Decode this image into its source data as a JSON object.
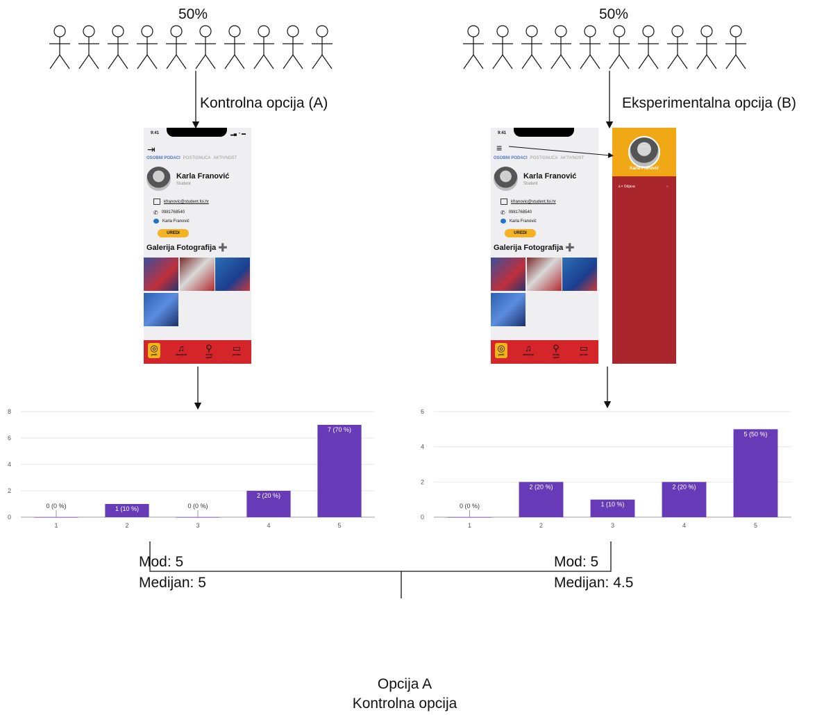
{
  "panels": [
    {
      "percent": "50%",
      "option_label": "Kontrolna opcija (A)",
      "phone": {
        "time": "9:41",
        "tabs": [
          "OSOBNI PODACI",
          "POSTIGNUĆA",
          "AKTIVNOST"
        ],
        "name": "Karla Franović",
        "role": "Student",
        "email": "kfranovic@student.foi.hr",
        "phone": "0981768540",
        "linkedin": "Karla Franović",
        "edit_label": "UREDI",
        "gallery_title": "Galerija Fotografija",
        "nav": [
          "profil",
          "obavijesti",
          "dodaj sport",
          "poruke"
        ]
      },
      "stats": {
        "mod": "Mod: 5",
        "medijan": "Medijan: 5"
      }
    },
    {
      "percent": "50%",
      "option_label": "Eksperimentalna opcija (B)",
      "phone": {
        "time": "9:41",
        "tabs": [
          "OSOBNI PODACI",
          "POSTIGNUĆA",
          "AKTIVNOST"
        ],
        "name": "Karla Franović",
        "role": "Student",
        "email": "kfranovic@student.foi.hr",
        "phone": "0981768540",
        "linkedin": "Karla Franović",
        "edit_label": "UREDI",
        "gallery_title": "Galerija Fotografija",
        "nav": [
          "profil",
          "obavijesti",
          "dodaj sport",
          "poruke"
        ],
        "drawer_name": "Karla Franović",
        "drawer_item": "Odjava"
      },
      "stats": {
        "mod": "Mod: 5",
        "medijan": "Medijan: 4.5"
      }
    }
  ],
  "chart_data": [
    {
      "type": "bar",
      "categories": [
        "1",
        "2",
        "3",
        "4",
        "5"
      ],
      "values": [
        0,
        1,
        0,
        2,
        7
      ],
      "data_labels": [
        "0 (0 %)",
        "1 (10 %)",
        "0 (0 %)",
        "2 (20 %)",
        "7 (70 %)"
      ],
      "ylim": [
        0,
        8
      ],
      "yticks": [
        0,
        2,
        4,
        6,
        8
      ],
      "grid": true,
      "color": "#673ab7"
    },
    {
      "type": "bar",
      "categories": [
        "1",
        "2",
        "3",
        "4",
        "5"
      ],
      "values": [
        0,
        2,
        1,
        2,
        5
      ],
      "data_labels": [
        "0 (0 %)",
        "2 (20 %)",
        "1 (10 %)",
        "2 (20 %)",
        "5 (50 %)"
      ],
      "ylim": [
        0,
        6
      ],
      "yticks": [
        0,
        2,
        4,
        6
      ],
      "grid": true,
      "color": "#673ab7"
    }
  ],
  "conclusion": {
    "line1": "Opcija A",
    "line2": "Kontrolna opcija"
  }
}
